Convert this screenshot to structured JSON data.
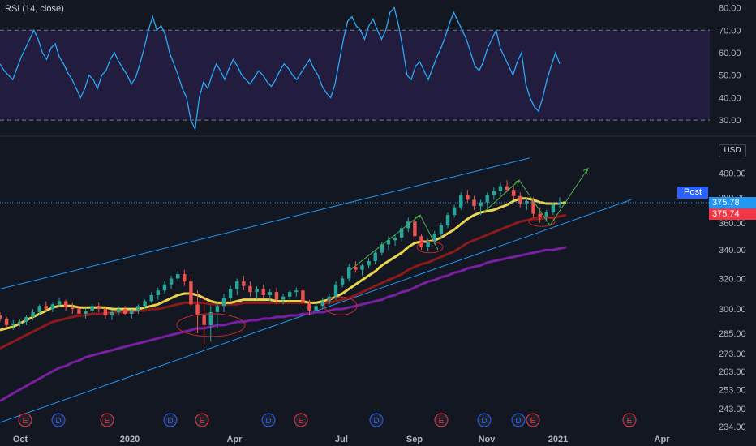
{
  "rsi_label": "RSI (14, close)",
  "currency": "USD",
  "post_label": "Post",
  "price_tags": [
    {
      "value": "375.78",
      "color": "#2196f3"
    },
    {
      "value": "375.74",
      "color": "#f23645"
    }
  ],
  "colors": {
    "background": "#131722",
    "rsi_band": "#2a1f4a",
    "rsi_line": "#2aa9f7",
    "candle_up": "#26a69a",
    "candle_down": "#ef5350",
    "channel": "#2196f3",
    "ma_fast": "#e8d44d",
    "ma_mid": "#8b1a1a",
    "ma_slow": "#7b1fa2",
    "arrow": "#4caf50",
    "circle": "#c62828"
  },
  "event_markers": [
    "E",
    "D",
    "E",
    "D",
    "E",
    "D",
    "E",
    "D",
    "E",
    "D",
    "D",
    "E",
    "E"
  ],
  "chart_data": [
    {
      "type": "line",
      "title": "RSI (14, close)",
      "y_ticks": [
        80,
        70,
        60,
        50,
        40,
        30
      ],
      "ylim": [
        25,
        82
      ],
      "overbought": 70,
      "oversold": 30,
      "series": [
        {
          "values": [
            55,
            52,
            50,
            48,
            53,
            58,
            62,
            66,
            70,
            66,
            60,
            57,
            62,
            64,
            58,
            55,
            51,
            48,
            44,
            40,
            44,
            50,
            48,
            44,
            50,
            52,
            57,
            60,
            56,
            53,
            50,
            46,
            49,
            55,
            62,
            70,
            76,
            70,
            72,
            68,
            60,
            55,
            50,
            44,
            40,
            30,
            26,
            40,
            47,
            44,
            50,
            55,
            52,
            48,
            53,
            57,
            54,
            50,
            48,
            46,
            49,
            52,
            50,
            47,
            45,
            48,
            52,
            55,
            53,
            50,
            48,
            51,
            54,
            57,
            53,
            50,
            45,
            42,
            40,
            46,
            56,
            66,
            74,
            76,
            72,
            70,
            66,
            72,
            75,
            70,
            66,
            70,
            78,
            80,
            72,
            62,
            50,
            48,
            54,
            56,
            52,
            48,
            53,
            58,
            62,
            67,
            73,
            78,
            74,
            70,
            66,
            60,
            54,
            52,
            56,
            62,
            66,
            70,
            62,
            58,
            54,
            50,
            56,
            60,
            46,
            40,
            36,
            34,
            40,
            48,
            54,
            60,
            55
          ]
        }
      ]
    },
    {
      "type": "candlestick",
      "x_ticks": [
        "Oct",
        "2020",
        "Apr",
        "Jul",
        "Sep",
        "Nov",
        "2021",
        "Apr"
      ],
      "y_ticks": [
        400,
        380,
        360,
        340,
        320,
        300,
        285,
        273,
        263,
        253,
        243,
        234
      ],
      "ylim": [
        234,
        410
      ],
      "last_price": 375.78,
      "post_price": 375.74,
      "ohlc": [
        [
          296,
          298,
          292,
          294
        ],
        [
          294,
          295,
          288,
          290
        ],
        [
          290,
          293,
          287,
          291
        ],
        [
          291,
          294,
          289,
          292
        ],
        [
          292,
          296,
          290,
          295
        ],
        [
          295,
          300,
          293,
          298
        ],
        [
          298,
          303,
          296,
          302
        ],
        [
          302,
          305,
          299,
          300
        ],
        [
          300,
          304,
          298,
          303
        ],
        [
          303,
          307,
          301,
          305
        ],
        [
          305,
          306,
          299,
          301
        ],
        [
          301,
          304,
          297,
          300
        ],
        [
          300,
          302,
          295,
          297
        ],
        [
          297,
          300,
          294,
          299
        ],
        [
          299,
          303,
          297,
          302
        ],
        [
          302,
          304,
          298,
          300
        ],
        [
          300,
          301,
          294,
          296
        ],
        [
          296,
          299,
          293,
          298
        ],
        [
          298,
          302,
          296,
          300
        ],
        [
          300,
          302,
          296,
          297
        ],
        [
          297,
          300,
          294,
          299
        ],
        [
          299,
          303,
          297,
          302
        ],
        [
          302,
          306,
          300,
          305
        ],
        [
          305,
          311,
          304,
          309
        ],
        [
          309,
          314,
          306,
          312
        ],
        [
          312,
          318,
          310,
          316
        ],
        [
          316,
          322,
          313,
          320
        ],
        [
          320,
          325,
          318,
          323
        ],
        [
          323,
          326,
          315,
          318
        ],
        [
          318,
          321,
          300,
          303
        ],
        [
          303,
          312,
          285,
          296
        ],
        [
          296,
          308,
          278,
          290
        ],
        [
          290,
          302,
          280,
          298
        ],
        [
          298,
          305,
          288,
          302
        ],
        [
          302,
          310,
          298,
          307
        ],
        [
          307,
          315,
          305,
          313
        ],
        [
          313,
          320,
          309,
          318
        ],
        [
          318,
          322,
          312,
          315
        ],
        [
          315,
          318,
          308,
          311
        ],
        [
          311,
          315,
          306,
          313
        ],
        [
          313,
          316,
          307,
          309
        ],
        [
          309,
          313,
          305,
          311
        ],
        [
          311,
          314,
          303,
          306
        ],
        [
          306,
          310,
          303,
          308
        ],
        [
          308,
          312,
          305,
          311
        ],
        [
          311,
          314,
          308,
          312
        ],
        [
          312,
          314,
          302,
          304
        ],
        [
          304,
          306,
          296,
          299
        ],
        [
          299,
          304,
          297,
          302
        ],
        [
          302,
          307,
          300,
          305
        ],
        [
          305,
          310,
          303,
          308
        ],
        [
          308,
          318,
          306,
          316
        ],
        [
          316,
          322,
          314,
          320
        ],
        [
          320,
          330,
          318,
          328
        ],
        [
          328,
          332,
          324,
          326
        ],
        [
          326,
          330,
          322,
          329
        ],
        [
          329,
          334,
          327,
          332
        ],
        [
          332,
          340,
          330,
          338
        ],
        [
          338,
          346,
          336,
          344
        ],
        [
          344,
          350,
          340,
          347
        ],
        [
          347,
          352,
          343,
          349
        ],
        [
          349,
          358,
          346,
          356
        ],
        [
          356,
          364,
          353,
          361
        ],
        [
          361,
          363,
          348,
          350
        ],
        [
          350,
          352,
          340,
          342
        ],
        [
          342,
          348,
          339,
          346
        ],
        [
          346,
          354,
          344,
          352
        ],
        [
          352,
          360,
          349,
          358
        ],
        [
          358,
          368,
          356,
          366
        ],
        [
          366,
          374,
          364,
          372
        ],
        [
          372,
          384,
          370,
          382
        ],
        [
          382,
          386,
          376,
          378
        ],
        [
          378,
          381,
          370,
          373
        ],
        [
          373,
          378,
          366,
          376
        ],
        [
          376,
          384,
          372,
          382
        ],
        [
          382,
          388,
          378,
          385
        ],
        [
          385,
          392,
          382,
          389
        ],
        [
          389,
          394,
          384,
          386
        ],
        [
          386,
          390,
          378,
          381
        ],
        [
          381,
          384,
          372,
          375
        ],
        [
          375,
          380,
          370,
          377
        ],
        [
          377,
          380,
          364,
          367
        ],
        [
          367,
          372,
          360,
          364
        ],
        [
          364,
          370,
          362,
          368
        ],
        [
          368,
          376,
          366,
          374
        ],
        [
          374,
          380,
          371,
          376
        ]
      ],
      "series": [
        {
          "name": "",
          "values": [
            287,
            288,
            289,
            291,
            293,
            295,
            297,
            299,
            301,
            302,
            302,
            302,
            301,
            301,
            301,
            301,
            301,
            300,
            300,
            300,
            300,
            300,
            301,
            302,
            303,
            305,
            307,
            309,
            310,
            310,
            309,
            307,
            305,
            304,
            304,
            304,
            305,
            306,
            306,
            306,
            306,
            306,
            305,
            305,
            305,
            305,
            305,
            304,
            304,
            305,
            306,
            308,
            310,
            313,
            316,
            319,
            322,
            325,
            329,
            332,
            335,
            338,
            342,
            345,
            346,
            346,
            347,
            349,
            352,
            355,
            359,
            363,
            366,
            368,
            369,
            370,
            372,
            374,
            377,
            379,
            379,
            378,
            376,
            375,
            375,
            375,
            376
          ]
        },
        {
          "name": "",
          "values": [
            276,
            278,
            280,
            282,
            284,
            286,
            288,
            290,
            292,
            293,
            294,
            295,
            296,
            296,
            297,
            297,
            297,
            298,
            298,
            298,
            298,
            299,
            299,
            300,
            300,
            301,
            302,
            303,
            304,
            304,
            304,
            304,
            303,
            303,
            303,
            303,
            303,
            304,
            304,
            304,
            304,
            304,
            304,
            304,
            304,
            304,
            304,
            304,
            304,
            304,
            304,
            305,
            306,
            307,
            309,
            311,
            313,
            315,
            317,
            319,
            321,
            323,
            326,
            328,
            330,
            331,
            333,
            335,
            337,
            339,
            342,
            345,
            347,
            349,
            351,
            353,
            355,
            357,
            359,
            361,
            362,
            363,
            363,
            364,
            364,
            365,
            366
          ]
        },
        {
          "name": "",
          "values": [
            247,
            249,
            251,
            253,
            255,
            257,
            259,
            261,
            263,
            265,
            266,
            268,
            269,
            271,
            272,
            273,
            274,
            275,
            276,
            277,
            278,
            279,
            280,
            281,
            282,
            283,
            284,
            285,
            286,
            287,
            288,
            288,
            289,
            290,
            290,
            291,
            292,
            292,
            293,
            293,
            294,
            294,
            295,
            295,
            296,
            296,
            297,
            297,
            298,
            298,
            299,
            300,
            300,
            301,
            302,
            303,
            304,
            305,
            306,
            308,
            309,
            311,
            312,
            314,
            316,
            318,
            319,
            321,
            322,
            324,
            325,
            327,
            328,
            329,
            331,
            332,
            333,
            334,
            335,
            336,
            337,
            338,
            339,
            340,
            340,
            341,
            342
          ]
        }
      ]
    }
  ]
}
